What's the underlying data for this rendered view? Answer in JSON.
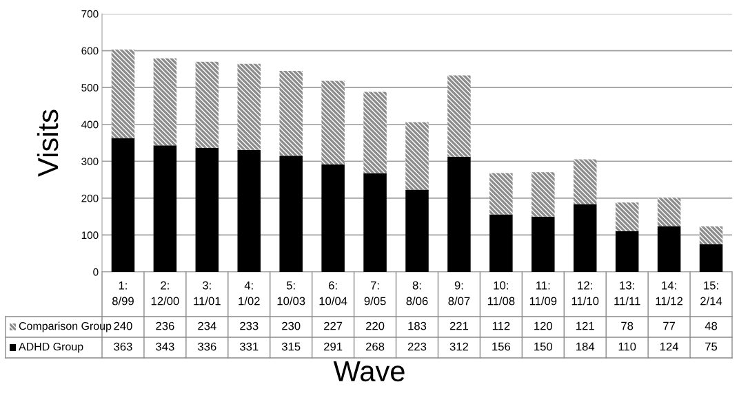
{
  "chart_data": {
    "type": "bar",
    "stacked": true,
    "xlabel": "Wave",
    "ylabel": "Visits",
    "categories": [
      "1:\n8/99",
      "2:\n12/00",
      "3:\n11/01",
      "4:\n1/02",
      "5:\n10/03",
      "6:\n10/04",
      "7:\n9/05",
      "8:\n8/06",
      "9:\n8/07",
      "10:\n11/08",
      "11:\n11/09",
      "12:\n11/10",
      "13:\n11/11",
      "14:\n11/12",
      "15:\n2/14"
    ],
    "series": [
      {
        "name": "ADHD Group",
        "color": "#000000",
        "values": [
          363,
          343,
          336,
          331,
          315,
          291,
          268,
          223,
          312,
          156,
          150,
          184,
          110,
          124,
          75
        ]
      },
      {
        "name": "Comparison Group",
        "color": "#8c8c8c",
        "values": [
          240,
          236,
          234,
          233,
          230,
          227,
          220,
          183,
          221,
          112,
          120,
          121,
          78,
          77,
          48
        ]
      }
    ],
    "ylim": [
      0,
      700
    ],
    "yticks": [
      0,
      100,
      200,
      300,
      400,
      500,
      600,
      700
    ],
    "grid": "y",
    "data_labels": true,
    "legend": "bottom"
  }
}
